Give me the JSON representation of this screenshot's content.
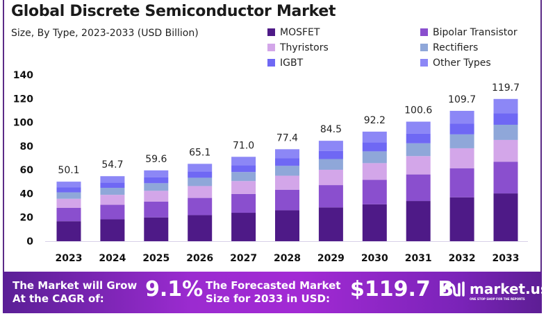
{
  "chart_data": {
    "type": "bar",
    "stacked": true,
    "title": "Global Discrete Semiconductor Market",
    "subtitle": "Size, By Type, 2023-2033 (USD Billion)",
    "categories": [
      "2023",
      "2024",
      "2025",
      "2026",
      "2027",
      "2028",
      "2029",
      "2030",
      "2031",
      "2032",
      "2033"
    ],
    "totals": [
      "50.1",
      "54.7",
      "59.6",
      "65.1",
      "71.0",
      "77.4",
      "84.5",
      "92.2",
      "100.6",
      "109.7",
      "119.7"
    ],
    "series": [
      {
        "name": "MOSFET",
        "color": "#4e1a87",
        "values": [
          16.8,
          18.4,
          20.0,
          21.9,
          23.9,
          26.0,
          28.4,
          31.0,
          33.8,
          36.9,
          40.2
        ]
      },
      {
        "name": "Bipolar Transistor",
        "color": "#8a4fce",
        "values": [
          11.2,
          12.2,
          13.3,
          14.5,
          15.8,
          17.3,
          18.8,
          20.6,
          22.4,
          24.5,
          26.7
        ]
      },
      {
        "name": "Thyristors",
        "color": "#d3a6e9",
        "values": [
          7.7,
          8.4,
          9.1,
          10.0,
          10.9,
          11.8,
          12.9,
          14.1,
          15.4,
          16.8,
          18.3
        ]
      },
      {
        "name": "Rectifiers",
        "color": "#8fa7d9",
        "values": [
          5.4,
          5.9,
          6.4,
          7.0,
          7.6,
          8.3,
          9.0,
          9.9,
          10.8,
          11.7,
          12.8
        ]
      },
      {
        "name": "IGBT",
        "color": "#6f68f4",
        "values": [
          4.1,
          4.5,
          4.9,
          5.3,
          5.8,
          6.3,
          6.9,
          7.6,
          8.2,
          9.0,
          9.8
        ]
      },
      {
        "name": "Other Types",
        "color": "#8c87f6",
        "values": [
          4.9,
          5.3,
          5.9,
          6.4,
          7.0,
          7.7,
          8.5,
          9.0,
          10.0,
          10.8,
          11.9
        ]
      }
    ],
    "yticks": [
      "0",
      "20",
      "40",
      "60",
      "80",
      "100",
      "120",
      "140"
    ],
    "ylim": [
      0,
      140
    ],
    "grid": false,
    "legend_position": "top-right"
  },
  "legend_order": [
    0,
    1,
    2,
    3,
    4,
    5
  ],
  "footer": {
    "cagr_label_1": "The Market will Grow",
    "cagr_label_2": "At the CAGR of:",
    "cagr_value": "9.1%",
    "forecast_label_1": "The Forecasted Market",
    "forecast_label_2": "Size for 2033 in USD:",
    "forecast_value": "$119.7 B",
    "brand": "market.us",
    "brand_tagline": "ONE STOP SHOP FOR THE REPORTS"
  }
}
